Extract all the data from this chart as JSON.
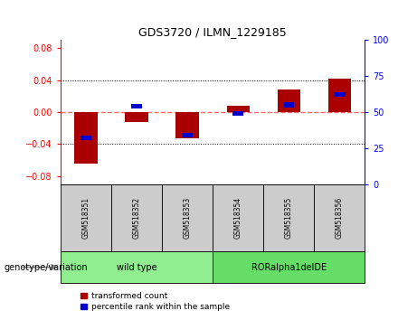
{
  "title": "GDS3720 / ILMN_1229185",
  "samples": [
    "GSM518351",
    "GSM518352",
    "GSM518353",
    "GSM518354",
    "GSM518355",
    "GSM518356"
  ],
  "red_values": [
    -0.065,
    -0.012,
    -0.033,
    0.008,
    0.028,
    0.042
  ],
  "blue_values_pct": [
    32,
    54,
    34,
    49,
    55,
    62
  ],
  "groups": [
    {
      "label": "wild type",
      "indices": [
        0,
        1,
        2
      ],
      "color": "#90EE90"
    },
    {
      "label": "RORalpha1delDE",
      "indices": [
        3,
        4,
        5
      ],
      "color": "#66DD66"
    }
  ],
  "ylim_left": [
    -0.09,
    0.09
  ],
  "ylim_right": [
    0,
    100
  ],
  "yticks_left": [
    -0.08,
    -0.04,
    0,
    0.04,
    0.08
  ],
  "yticks_right": [
    0,
    25,
    50,
    75,
    100
  ],
  "red_color": "#AA0000",
  "blue_color": "#0000CC",
  "zero_line_color": "#FF6666",
  "bg_label": "#CCCCCC",
  "legend_red": "transformed count",
  "legend_blue": "percentile rank within the sample",
  "genotype_label": "genotype/variation",
  "bar_width": 0.45,
  "blue_bar_width": 0.22,
  "blue_bar_height": 0.006
}
